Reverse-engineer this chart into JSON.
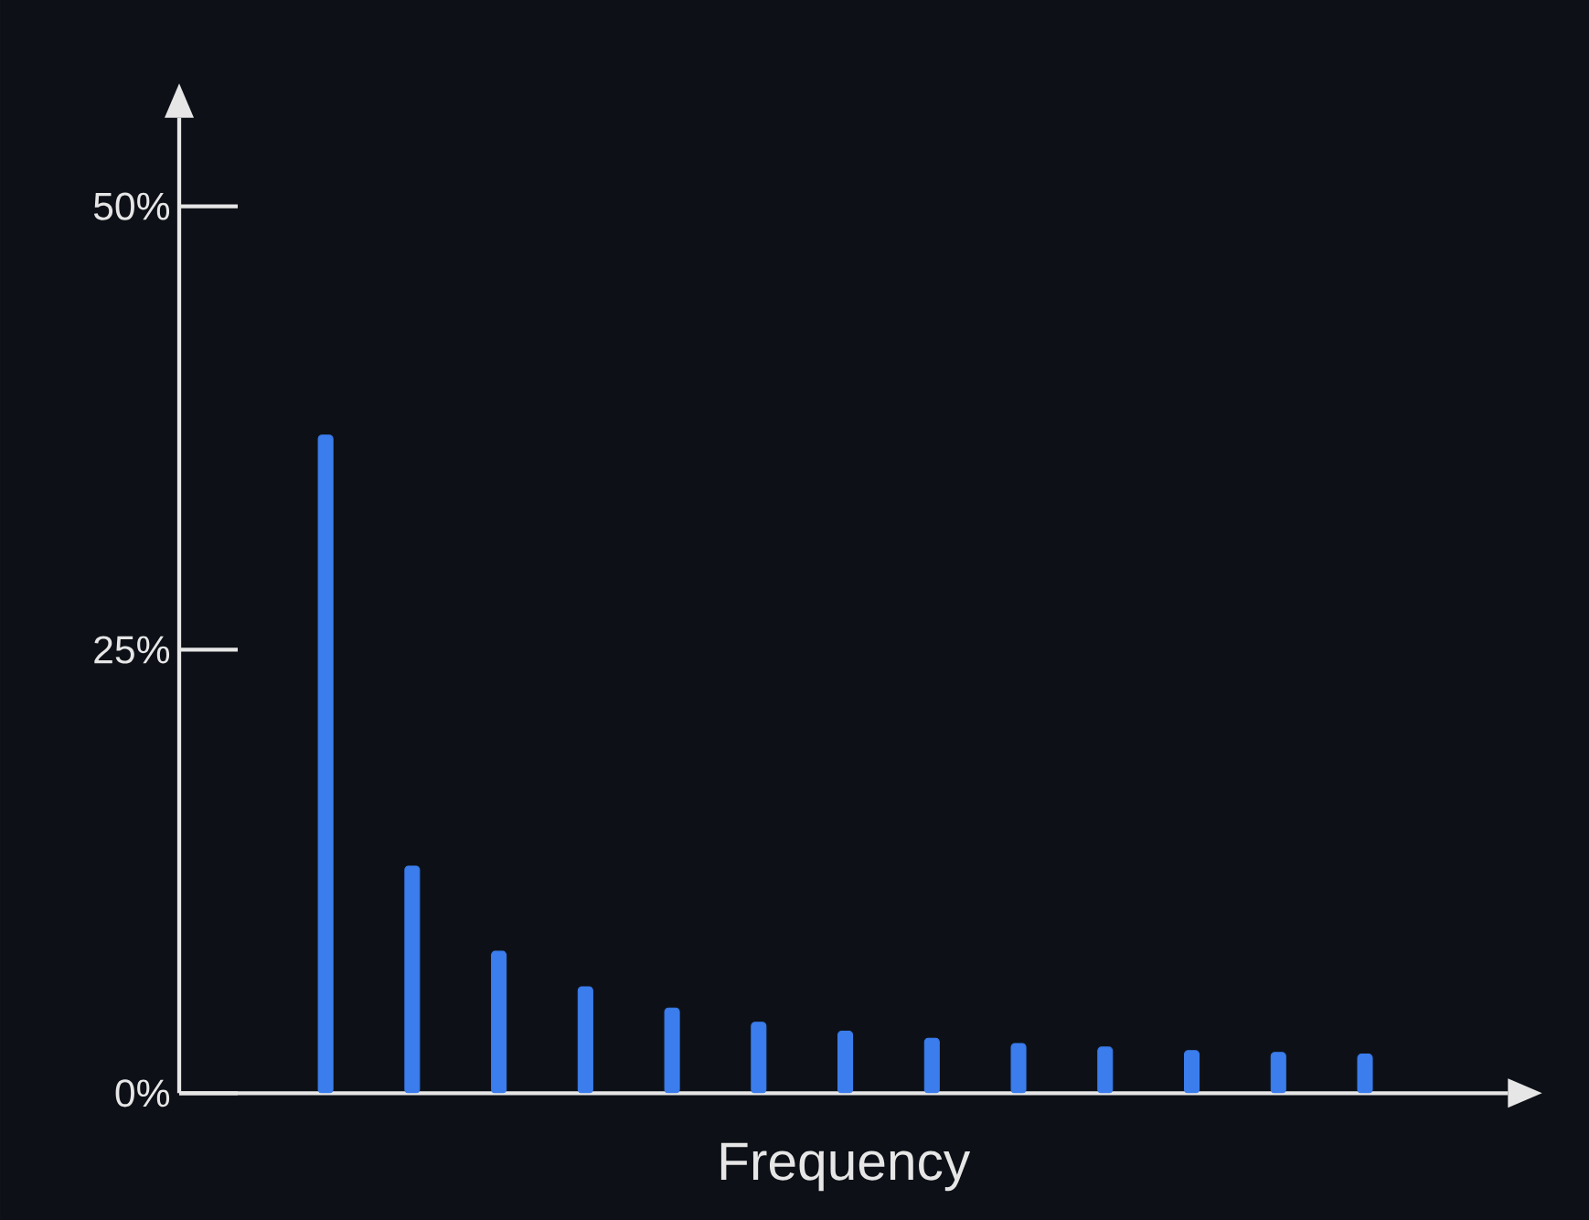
{
  "chart_data": {
    "type": "bar",
    "xlabel": "Frequency",
    "categories": [
      null,
      null,
      null,
      null,
      null,
      null,
      null,
      null,
      null,
      null,
      null,
      null,
      null
    ],
    "values": [
      37.1,
      12.8,
      8.0,
      6.0,
      4.8,
      4.0,
      3.5,
      3.1,
      2.8,
      2.6,
      2.4,
      2.3,
      2.2
    ],
    "color": "#3b7ded",
    "ylim": [
      0,
      55
    ],
    "yticks": [
      {
        "value": 0,
        "label": "0%"
      },
      {
        "value": 25,
        "label": "25%"
      },
      {
        "value": 50,
        "label": "50%"
      }
    ],
    "grid": false
  }
}
